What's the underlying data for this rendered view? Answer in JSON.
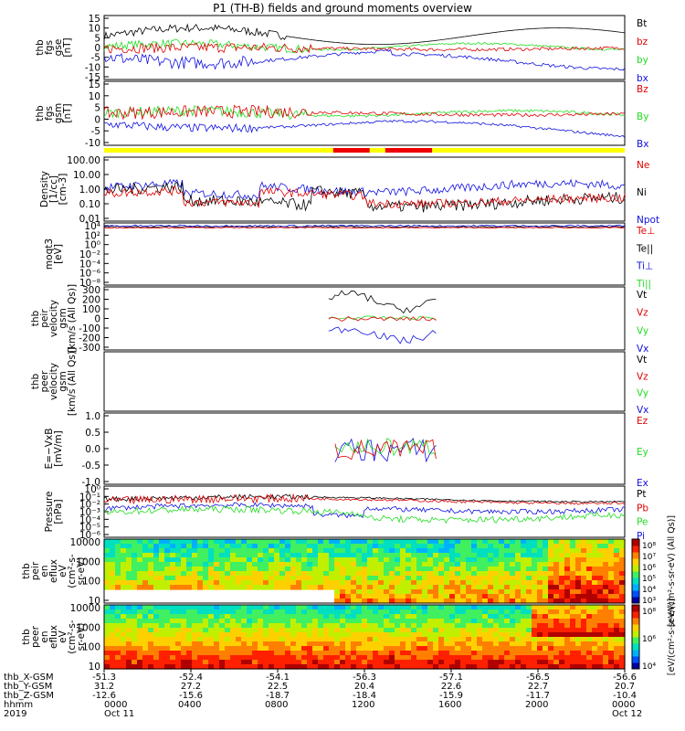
{
  "title": "P1 (TH-B) fields and ground moments overview",
  "colors": {
    "black": "#000000",
    "red": "#e00000",
    "green": "#22dd22",
    "blue": "#1010e0",
    "bar_yellow": "#ffff00",
    "bar_red": "#ee0000"
  },
  "chart_data": {
    "type": "line",
    "panels": [
      {
        "id": "fgs-gse",
        "ylabel": [
          "thb",
          "fgs",
          "gse",
          "[nT]"
        ],
        "legend": [
          {
            "name": "Bt",
            "color": "black"
          },
          {
            "name": "bz",
            "color": "red"
          },
          {
            "name": "by",
            "color": "green"
          },
          {
            "name": "bx",
            "color": "blue"
          }
        ],
        "yticks": [
          "15",
          "10",
          "5",
          "0",
          "-5",
          "-10",
          "-15"
        ],
        "ylim": [
          -15,
          16
        ],
        "log": false
      },
      {
        "id": "fgs-gsm",
        "ylabel": [
          "thb",
          "fgs",
          "gsm",
          "[nT]"
        ],
        "legend": [
          {
            "name": "Bz",
            "color": "red"
          },
          {
            "name": "By",
            "color": "green"
          },
          {
            "name": "Bx",
            "color": "blue"
          }
        ],
        "yticks": [
          "15",
          "10",
          "5",
          "0",
          "-5",
          "-10"
        ],
        "ylim": [
          -14,
          16
        ],
        "log": false
      },
      {
        "id": "density",
        "ylabel": [
          "Density",
          "[1/cc]",
          "[cm-3]"
        ],
        "legend": [
          {
            "name": "Ne",
            "color": "red"
          },
          {
            "name": "Ni",
            "color": "black"
          },
          {
            "name": "Npot",
            "color": "blue"
          }
        ],
        "yticks": [
          "100.00",
          "10.00",
          "1.00",
          "0.10",
          "0.01"
        ],
        "ylim": [
          0.008,
          200
        ],
        "log": true
      },
      {
        "id": "temperature",
        "ylabel": [
          "moqt3",
          "[eV]"
        ],
        "legend": [
          {
            "name": "Te⊥",
            "color": "red"
          },
          {
            "name": "Te||",
            "color": "black"
          },
          {
            "name": "Ti⊥",
            "color": "blue"
          },
          {
            "name": "Ti||",
            "color": "green"
          }
        ],
        "yticks": [
          "10⁴",
          "10²",
          "10⁰",
          "10⁻²",
          "10⁻⁴",
          "10⁻⁶",
          "10⁻⁸"
        ],
        "ylim": [
          -9,
          4
        ],
        "log": true
      },
      {
        "id": "peir-velocity",
        "ylabel": [
          "thb",
          "peir",
          "velocity",
          "gsm",
          "[km/s (All Qs)]"
        ],
        "legend": [
          {
            "name": "Vt",
            "color": "black"
          },
          {
            "name": "Vz",
            "color": "red"
          },
          {
            "name": "Vy",
            "color": "green"
          },
          {
            "name": "Vx",
            "color": "blue"
          }
        ],
        "yticks": [
          "300",
          "200",
          "100",
          "0",
          "-100",
          "-200",
          "-300"
        ],
        "ylim": [
          -320,
          330
        ],
        "log": false
      },
      {
        "id": "peer-velocity",
        "ylabel": [
          "thb",
          "peer",
          "velocity",
          "gsm",
          "[km/s (All Qs)]"
        ],
        "legend": [
          {
            "name": "Vt",
            "color": "black"
          },
          {
            "name": "Vz",
            "color": "red"
          },
          {
            "name": "Vy",
            "color": "green"
          },
          {
            "name": "Vx",
            "color": "blue"
          }
        ],
        "yticks": [],
        "ylim": [
          0,
          1
        ],
        "log": false
      },
      {
        "id": "efield",
        "ylabel": [
          "E=−VxB",
          "[mV/m]"
        ],
        "legend": [
          {
            "name": "Ez",
            "color": "red"
          },
          {
            "name": "Ey",
            "color": "green"
          },
          {
            "name": "Ex",
            "color": "blue"
          }
        ],
        "yticks": [
          "1.0",
          "0.5",
          "0.0",
          "-0.5",
          "-1.0"
        ],
        "ylim": [
          -1.1,
          1.2
        ],
        "log": false
      },
      {
        "id": "pressure",
        "ylabel": [
          "Pressure",
          "[nPa]"
        ],
        "legend": [
          {
            "name": "Pt",
            "color": "black"
          },
          {
            "name": "Pb",
            "color": "red"
          },
          {
            "name": "Pe",
            "color": "green"
          },
          {
            "name": "Pi",
            "color": "blue"
          }
        ],
        "yticks": [
          "10⁰",
          "10⁻¹",
          "10⁻²",
          "10⁻³",
          "10⁻⁴",
          "10⁻⁵",
          "10⁻⁶"
        ],
        "ylim": [
          -6,
          0.2
        ],
        "log": true
      },
      {
        "id": "peir-spectrogram",
        "ylabel": [
          "thb",
          "peir",
          "en",
          "eflux",
          "eV",
          "(cm²-s-",
          "sr-eV)"
        ],
        "yticks": [
          "10000",
          "1000",
          "100",
          "10"
        ],
        "ylim": [
          5,
          30000
        ],
        "log": true
      },
      {
        "id": "peer-spectrogram",
        "ylabel": [
          "thb",
          "peer",
          "en",
          "eflux",
          "eV",
          "(cm²-s-",
          "sr-eV)"
        ],
        "yticks": [
          "10000",
          "1000",
          "100",
          "10"
        ],
        "ylim": [
          5,
          30000
        ],
        "log": true
      }
    ],
    "colorbar_ion": {
      "ticks": [
        "10⁸",
        "10⁷",
        "10⁶",
        "10⁵",
        "10⁴",
        "10³"
      ],
      "label": "[eV/(cm²-s-sr-eV) (All Qs)]"
    },
    "colorbar_electron": {
      "ticks": [
        "10⁸",
        "10⁶",
        "10⁴"
      ],
      "label": "[eV/(cm²-s-sr-eV)]"
    },
    "ephemeris": {
      "rows": [
        "thb_X-GSM",
        "thb_Y-GSM",
        "thb_Z-GSM",
        "hhmm",
        "2019"
      ],
      "columns": [
        [
          "-51.3",
          "31.2",
          "-12.6",
          "0000",
          "Oct 11"
        ],
        [
          "-52.4",
          "27.2",
          "-15.6",
          "0400",
          ""
        ],
        [
          "-54.1",
          "22.5",
          "-18.7",
          "0800",
          ""
        ],
        [
          "-56.3",
          "20.4",
          "-18.4",
          "1200",
          ""
        ],
        [
          "-57.1",
          "22.6",
          "-15.9",
          "1600",
          ""
        ],
        [
          "-56.5",
          "22.7",
          "-11.7",
          "2000",
          ""
        ],
        [
          "-56.6",
          "20.7",
          "-10.4",
          "0000",
          "Oct 12"
        ]
      ]
    }
  }
}
